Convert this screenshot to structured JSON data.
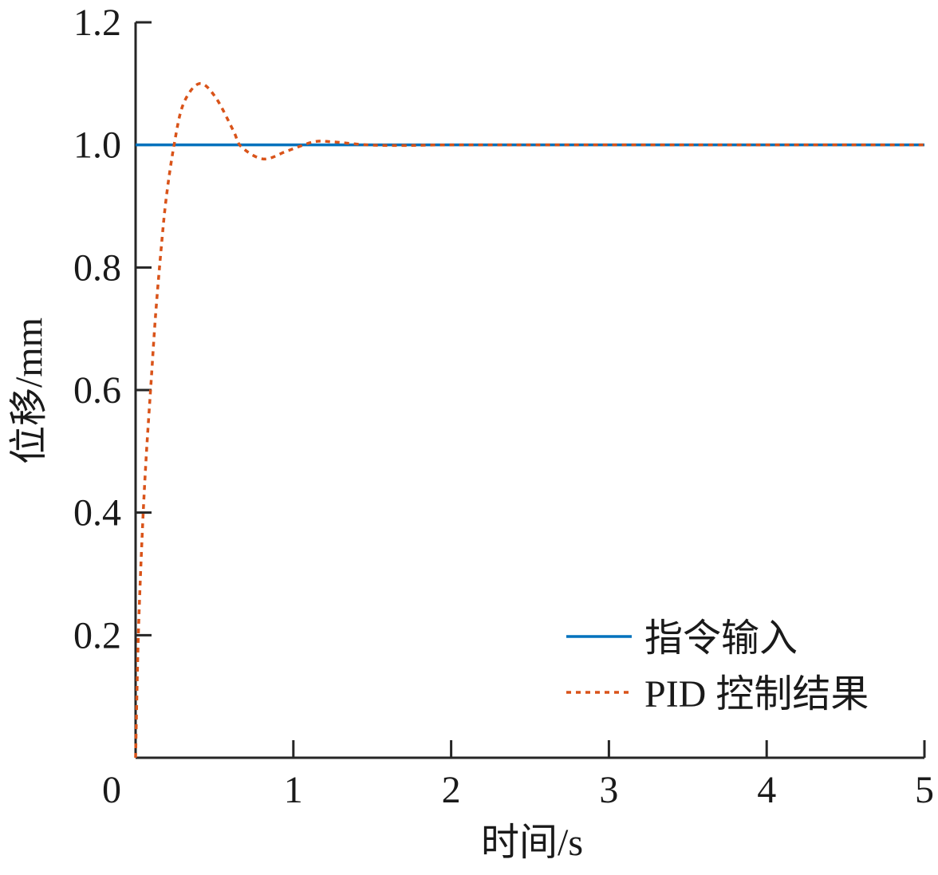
{
  "chart_data": {
    "type": "line",
    "title": "",
    "xlabel": "时间/s",
    "ylabel": "位移/mm",
    "xlim": [
      0,
      5
    ],
    "ylim": [
      0,
      1.2
    ],
    "xticks": [
      "0",
      "1",
      "2",
      "3",
      "4",
      "5"
    ],
    "yticks": [
      "0.2",
      "0.4",
      "0.6",
      "0.8",
      "1.0",
      "1.2"
    ],
    "grid": false,
    "legend_position": "bottom-right",
    "series": [
      {
        "name": "指令输入",
        "color": "#0072BD",
        "style": "solid",
        "x": [
          0,
          5
        ],
        "y": [
          1.0,
          1.0
        ]
      },
      {
        "name": "PID 控制结果",
        "color": "#D95319",
        "style": "dotted",
        "x": [
          0,
          0.017,
          0.042,
          0.067,
          0.1,
          0.126,
          0.16,
          0.194,
          0.244,
          0.303,
          0.404,
          0.506,
          0.62,
          0.67,
          0.81,
          0.96,
          1.13,
          1.25,
          1.47,
          1.7,
          2.0,
          3.0,
          4.0,
          5.0
        ],
        "y": [
          0,
          0.197,
          0.365,
          0.49,
          0.62,
          0.72,
          0.825,
          0.913,
          1.0,
          1.067,
          1.1,
          1.078,
          1.023,
          0.997,
          0.977,
          0.99,
          1.005,
          1.005,
          1.0,
          0.999,
          1.0,
          1.0,
          1.0,
          1.0
        ]
      }
    ]
  }
}
